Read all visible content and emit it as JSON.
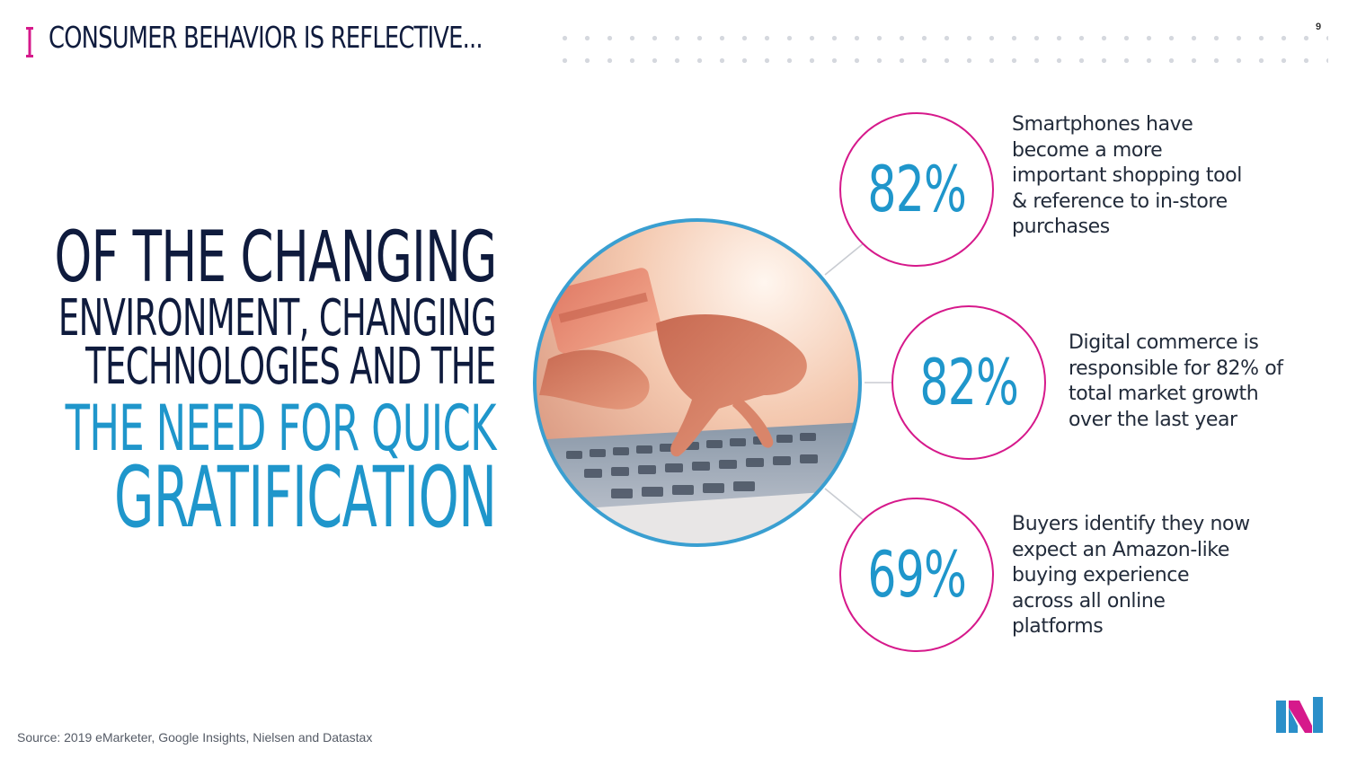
{
  "header": {
    "title": "CONSUMER BEHAVIOR IS REFLECTIVE...",
    "page_number": "9"
  },
  "headline": {
    "line1": "OF THE CHANGING",
    "line2": "ENVIRONMENT, CHANGING",
    "line3": "TECHNOLOGIES AND THE",
    "line4": "THE NEED FOR QUICK",
    "line5": "GRATIFICATION"
  },
  "stats": [
    {
      "value": "82%",
      "text": "Smartphones have become a more important shopping tool & reference to in-store purchases"
    },
    {
      "value": "82%",
      "text": "Digital commerce is responsible for 82% of total market growth over the last year"
    },
    {
      "value": "69%",
      "text": "Buyers identify they now expect an Amazon-like buying experience across all online platforms"
    }
  ],
  "footer": {
    "source": "Source: 2019 eMarketer, Google Insights, Nielsen and Datastax"
  },
  "colors": {
    "navy": "#0f1b3d",
    "blue": "#1f96cb",
    "magenta": "#d6198b",
    "circle_border": "#3a9fd1"
  },
  "images": {
    "photo": "hand-holding-credit-card-typing-on-laptop",
    "logo": "company-logo"
  }
}
